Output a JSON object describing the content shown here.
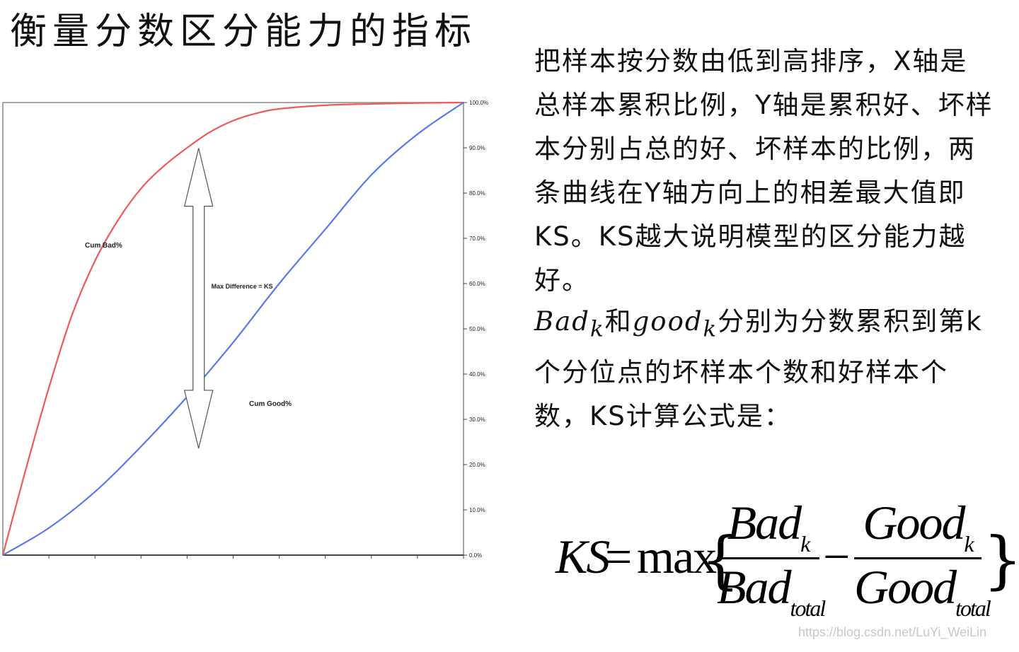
{
  "title": "衡量分数区分能力的指标",
  "description_paragraph": "把样本按分数由低到高排序，X轴是总样本累积比例，Y轴是累积好、坏样本分别占总的好、坏样本的比例，两条曲线在Y轴方向上的相差最大值即KS。KS越大说明模型的区分能力越好。",
  "definition": {
    "bad_k": "Bad",
    "k_sub": "k",
    "and_text": "和",
    "good_k": "good",
    "rest": "分别为分数累积到第k个分位点的坏样本个数和好样本个数，KS计算公式是："
  },
  "formula": {
    "lhs": "KS",
    "equals": "=",
    "max": "max",
    "open_brace": "{",
    "close_brace": "}",
    "minus": "−",
    "bad_num": "Bad",
    "bad_num_sub": "k",
    "bad_den": "Bad",
    "bad_den_sub": "total",
    "good_num": "Good",
    "good_num_sub": "k",
    "good_den": "Good",
    "good_den_sub": "total"
  },
  "watermark": "https://blog.csdn.net/LuYi_WeiLin",
  "chart_data": {
    "type": "line",
    "title": "",
    "xlabel": "",
    "ylabel": "",
    "ylim": [
      0,
      100
    ],
    "xlim": [
      0,
      100
    ],
    "y_ticks": [
      "0.0%",
      "10.0%",
      "20.0%",
      "30.0%",
      "40.0%",
      "50.0%",
      "60.0%",
      "70.0%",
      "80.0%",
      "90.0%",
      "100.0%"
    ],
    "y_axis_position": "right",
    "grid": false,
    "series": [
      {
        "name": "Cum Bad%",
        "color": "#ee5a5a",
        "x": [
          0,
          5,
          10,
          15,
          20,
          25,
          30,
          35,
          40,
          45,
          50,
          55,
          60,
          70,
          80,
          90,
          100
        ],
        "y": [
          0,
          19,
          37,
          53,
          65,
          74,
          81,
          86,
          90,
          93.5,
          96,
          97.6,
          98.6,
          99.4,
          99.7,
          99.9,
          100
        ]
      },
      {
        "name": "Cum Good%",
        "color": "#5a78ee",
        "x": [
          0,
          10,
          20,
          30,
          40,
          50,
          60,
          70,
          80,
          90,
          100
        ],
        "y": [
          0,
          6,
          14,
          24,
          35,
          47,
          60,
          72,
          84,
          93,
          100
        ]
      }
    ],
    "annotations": [
      {
        "text": "Max Difference = KS",
        "type": "double-arrow",
        "x": 42.5,
        "y_from": 23.6,
        "y_to": 89.9
      }
    ]
  }
}
